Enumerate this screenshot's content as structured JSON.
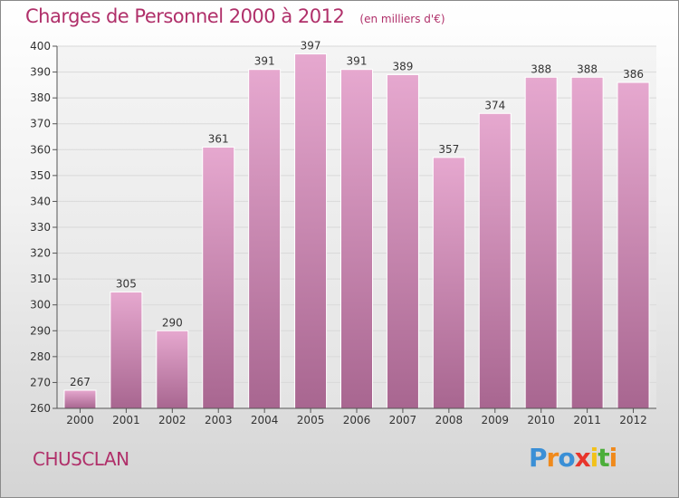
{
  "header": {
    "title": "Charges de Personnel 2000 à 2012",
    "subtitle": "(en milliers d'€)"
  },
  "footer": {
    "commune": "CHUSCLAN",
    "logo": {
      "letters": [
        "P",
        "r",
        "o",
        "x",
        "i",
        "t",
        "i"
      ],
      "colors": [
        "#3a8fd6",
        "#f08a1c",
        "#3a8fd6",
        "#e8352b",
        "#f2c11a",
        "#4cae3a",
        "#f08a1c"
      ]
    }
  },
  "colors": {
    "bar_top": "#e6a8cf",
    "bar_bottom": "#a86690",
    "grid": "#d9d9d9",
    "axis": "#555555",
    "text": "#333333"
  },
  "chart_data": {
    "type": "bar",
    "title": "Charges de Personnel 2000 à 2012",
    "subtitle": "(en milliers d'€)",
    "categories": [
      "2000",
      "2001",
      "2002",
      "2003",
      "2004",
      "2005",
      "2006",
      "2007",
      "2008",
      "2009",
      "2010",
      "2011",
      "2012"
    ],
    "values": [
      267,
      305,
      290,
      361,
      391,
      397,
      391,
      389,
      357,
      374,
      388,
      388,
      386
    ],
    "ylim": [
      260,
      400
    ],
    "yticks": [
      260,
      270,
      280,
      290,
      300,
      310,
      320,
      330,
      340,
      350,
      360,
      370,
      380,
      390,
      400
    ],
    "grid": true,
    "legend": "none",
    "xlabel": "",
    "ylabel": ""
  }
}
